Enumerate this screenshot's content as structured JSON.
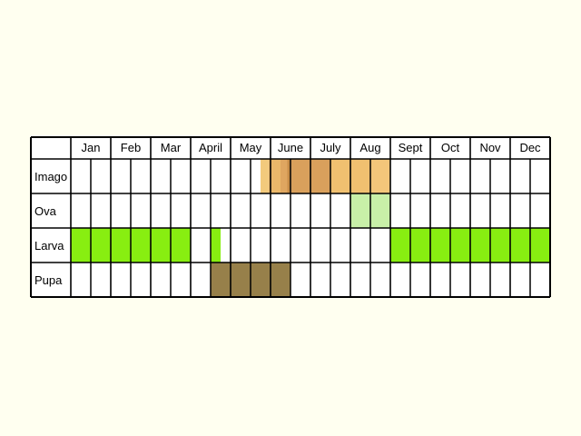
{
  "chart_data": {
    "type": "table",
    "months": [
      "Jan",
      "Feb",
      "Mar",
      "April",
      "May",
      "June",
      "July",
      "Aug",
      "Sept",
      "Oct",
      "Nov",
      "Dec"
    ],
    "stages": [
      {
        "name": "Imago",
        "color": "#f0c070",
        "segments": [
          {
            "start": 4.75,
            "end": 4.95,
            "color": "#f3ca7c"
          },
          {
            "start": 4.95,
            "end": 5.25,
            "color": "#ebb86a"
          },
          {
            "start": 5.25,
            "end": 5.42,
            "color": "#dfa660"
          },
          {
            "start": 5.42,
            "end": 5.52,
            "color": "#c98e48"
          },
          {
            "start": 5.52,
            "end": 6.5,
            "color": "#d9a05c"
          },
          {
            "start": 6.5,
            "end": 7.5,
            "color": "#f0c070"
          },
          {
            "start": 7.5,
            "end": 8.0,
            "color": "#f3c67a"
          }
        ]
      },
      {
        "name": "Ova",
        "color": "#c8f0a8",
        "segments": [
          {
            "start": 7.0,
            "end": 8.0,
            "color": "#c8f0a8"
          }
        ]
      },
      {
        "name": "Larva",
        "color": "#88ee11",
        "segments": [
          {
            "start": 0.0,
            "end": 3.0,
            "color": "#88ee11"
          },
          {
            "start": 3.5,
            "end": 3.75,
            "color": "#88ee11"
          },
          {
            "start": 8.0,
            "end": 12.0,
            "color": "#88ee11"
          }
        ]
      },
      {
        "name": "Pupa",
        "color": "#97804a",
        "segments": [
          {
            "start": 3.5,
            "end": 5.5,
            "color": "#97804a"
          }
        ]
      }
    ],
    "subdivisions_per_month": 2,
    "grid": true
  }
}
